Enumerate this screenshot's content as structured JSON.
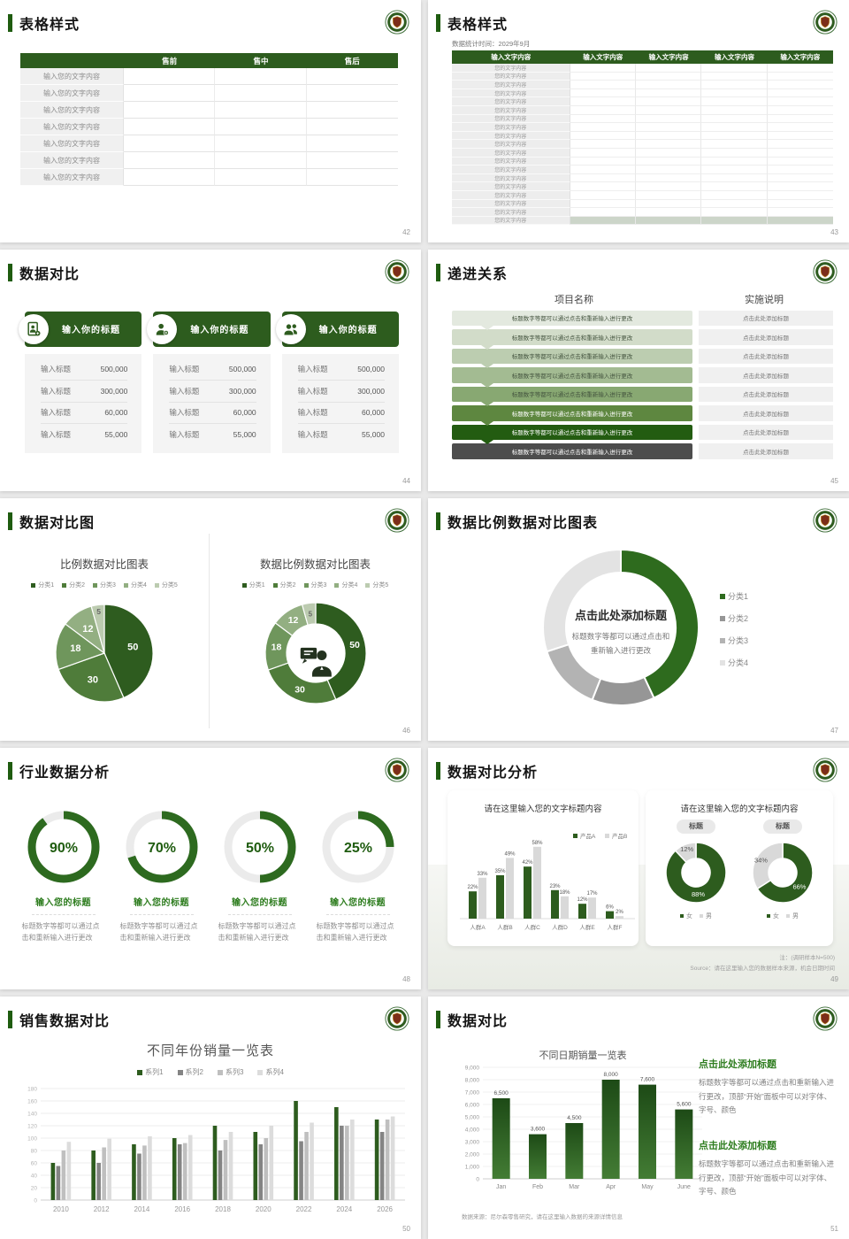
{
  "page": {
    "background": "#e9e9e9",
    "accent_green": "#1f5c10"
  },
  "slides": {
    "s42": {
      "title": "表格样式",
      "page_number": "42",
      "table": {
        "headers": [
          "",
          "售前",
          "售中",
          "售后"
        ],
        "row_label": "输入您的文字内容",
        "row_count": 7
      }
    },
    "s43": {
      "title": "表格样式",
      "subtitle": "数据统计时间：2029年9月",
      "page_number": "43",
      "table": {
        "headers": [
          "输入文字内容",
          "输入文字内容",
          "输入文字内容",
          "输入文字内容",
          "输入文字内容"
        ],
        "row_label": "您的文字内容",
        "row_count": 19,
        "footer_band_color": "#ccd5c9"
      }
    },
    "s44": {
      "title": "数据对比",
      "page_number": "44",
      "cards": [
        {
          "icon": "contact-card-icon",
          "header": "输入你的标题",
          "rows": [
            {
              "label": "输入标题",
              "value": "500,000"
            },
            {
              "label": "输入标题",
              "value": "300,000"
            },
            {
              "label": "输入标题",
              "value": "60,000"
            },
            {
              "label": "输入标题",
              "value": "55,000"
            }
          ]
        },
        {
          "icon": "person-add-icon",
          "header": "输入你的标题",
          "rows": [
            {
              "label": "输入标题",
              "value": "500,000"
            },
            {
              "label": "输入标题",
              "value": "300,000"
            },
            {
              "label": "输入标题",
              "value": "60,000"
            },
            {
              "label": "输入标题",
              "value": "55,000"
            }
          ]
        },
        {
          "icon": "people-icon",
          "header": "输入你的标题",
          "rows": [
            {
              "label": "输入标题",
              "value": "500,000"
            },
            {
              "label": "输入标题",
              "value": "300,000"
            },
            {
              "label": "输入标题",
              "value": "60,000"
            },
            {
              "label": "输入标题",
              "value": "55,000"
            }
          ]
        }
      ]
    },
    "s45": {
      "title": "递进关系",
      "page_number": "45",
      "left_header": "项目名称",
      "right_header": "实施说明",
      "step_text": "标题数字等都可以通过点击和重新输入进行更改",
      "note_text": "点击此处添加标题",
      "step_colors": [
        "#e3e9df",
        "#d2dcc9",
        "#bccdb0",
        "#a3bb92",
        "#88a872",
        "#5e8740",
        "#235c11",
        "#4d4d4d"
      ],
      "row_count": 8
    },
    "s46": {
      "title": "数据对比图",
      "page_number": "46",
      "chart_data": [
        {
          "type": "pie",
          "title": "比例数据对比图表",
          "labels": [
            "分类1",
            "分类2",
            "分类3",
            "分类4",
            "分类5"
          ],
          "values": [
            50,
            30,
            18,
            12,
            5
          ],
          "colors": [
            "#2e5c1f",
            "#4f7c3a",
            "#6f965c",
            "#93af82",
            "#bccbb0"
          ]
        },
        {
          "type": "donut",
          "title": "数据比例数据对比图表",
          "labels": [
            "分类1",
            "分类2",
            "分类3",
            "分类4",
            "分类5"
          ],
          "values": [
            50,
            30,
            18,
            12,
            5
          ],
          "colors": [
            "#2e5c1f",
            "#4f7c3a",
            "#6f965c",
            "#93af82",
            "#bccbb0"
          ],
          "center_icon": "presenter-icon"
        }
      ]
    },
    "s47": {
      "title": "数据比例数据对比图表",
      "page_number": "47",
      "center_title": "点击此处添加标题",
      "center_sub1": "标题数字等都可以通过点击和",
      "center_sub2": "重新输入进行更改",
      "chart_data": {
        "type": "donut",
        "labels": [
          "分类1",
          "分类2",
          "分类3",
          "分类4"
        ],
        "values": [
          43,
          13,
          14,
          30
        ],
        "colors": [
          "#2e6b1e",
          "#969696",
          "#b3b3b3",
          "#e3e3e3"
        ]
      }
    },
    "s48": {
      "title": "行业数据分析",
      "page_number": "48",
      "item_title": "输入您的标题",
      "item_desc": "标题数字等都可以通过点击和重新输入进行更改",
      "chart_data": {
        "type": "rings",
        "values": [
          90,
          70,
          50,
          25
        ],
        "unit": "%",
        "color": "#2d6a1f",
        "track": "#ebebeb"
      }
    },
    "s49": {
      "title": "数据对比分析",
      "page_number": "49",
      "left_panel_title": "请在这里输入您的文字标题内容",
      "right_panel_title": "请在这里输入您的文字标题内容",
      "note_line1": "注：(调研样本N=500)",
      "note_line2": "Source：请在这里输入您的数据样本来源，机会日期时间",
      "chart_data": [
        {
          "type": "bar",
          "categories": [
            "人群A",
            "人群B",
            "人群C",
            "人群D",
            "人群E",
            "人群F"
          ],
          "series": [
            {
              "name": "产品A",
              "color": "#2d5c1e",
              "values": [
                22,
                35,
                42,
                23,
                12,
                6
              ]
            },
            {
              "name": "产品B",
              "color": "#d9d9d9",
              "values": [
                33,
                49,
                58,
                18,
                17,
                2
              ]
            }
          ],
          "value_suffix": "%",
          "ylim": [
            0,
            60
          ]
        },
        {
          "type": "donut",
          "badge": "标题",
          "labels": [
            "女",
            "男"
          ],
          "values": [
            88,
            12
          ],
          "colors": [
            "#2d5c1e",
            "#d9d9d9"
          ]
        },
        {
          "type": "donut",
          "badge": "标题",
          "labels": [
            "女",
            "男"
          ],
          "values": [
            66,
            34
          ],
          "colors": [
            "#2d5c1e",
            "#d9d9d9"
          ]
        }
      ]
    },
    "s50": {
      "title": "销售数据对比",
      "page_number": "50",
      "chart_data": {
        "type": "bar",
        "title": "不同年份销量一览表",
        "categories": [
          "2010",
          "2012",
          "2014",
          "2016",
          "2018",
          "2020",
          "2022",
          "2024",
          "2026"
        ],
        "series": [
          {
            "name": "系列1",
            "color": "#2d5c1e",
            "values": [
              60,
              80,
              90,
              100,
              120,
              110,
              160,
              150,
              130
            ]
          },
          {
            "name": "系列2",
            "color": "#848484",
            "values": [
              55,
              60,
              75,
              90,
              80,
              90,
              95,
              120,
              110
            ]
          },
          {
            "name": "系列3",
            "color": "#bfbfbf",
            "values": [
              80,
              85,
              88,
              92,
              97,
              100,
              110,
              120,
              130
            ]
          },
          {
            "name": "系列4",
            "color": "#dcdcdc",
            "values": [
              94,
              99,
              103,
              105,
              110,
              120,
              125,
              130,
              135
            ]
          }
        ],
        "ylim": [
          0,
          180
        ],
        "ytick_step": 20
      }
    },
    "s51": {
      "title": "数据对比",
      "page_number": "51",
      "source_note": "数据来源：尼尔森零售研究，请在这里输入数据的来源详情信息",
      "blocks": [
        {
          "heading": "点击此处添加标题",
          "body": "标题数字等都可以通过点击和重新输入进行更改，顶部“开始”面板中可以对字体、字号、颜色"
        },
        {
          "heading": "点击此处添加标题",
          "body": "标题数字等都可以通过点击和重新输入进行更改，顶部“开始”面板中可以对字体、字号、颜色"
        }
      ],
      "chart_data": {
        "type": "bar",
        "title": "不同日期销量一览表",
        "categories": [
          "Jan",
          "Feb",
          "Mar",
          "Apr",
          "May",
          "June"
        ],
        "values": [
          6500,
          3600,
          4500,
          8000,
          7600,
          5600
        ],
        "labels": [
          "6,500",
          "3,600",
          "4,500",
          "8,000",
          "7,600",
          "5,600"
        ],
        "ylim": [
          0,
          9000
        ],
        "ytick_step": 1000
      }
    }
  }
}
